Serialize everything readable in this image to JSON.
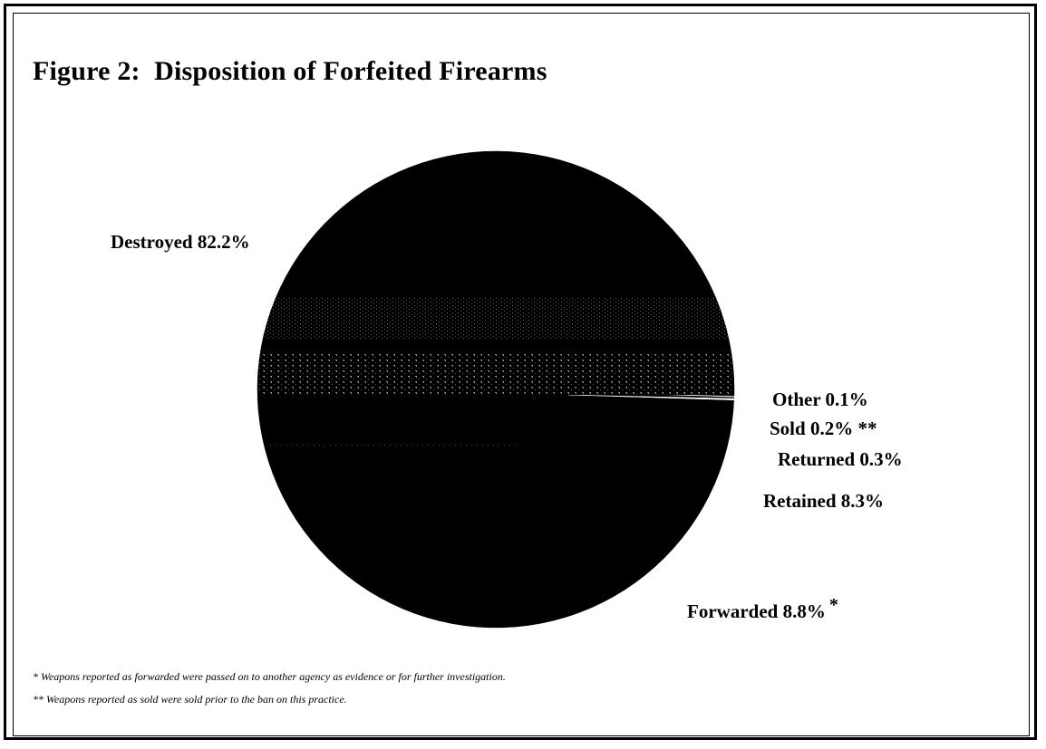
{
  "figure": {
    "title": "Figure 2:  Disposition of Forfeited Firearms"
  },
  "chart_data": {
    "type": "pie",
    "title": "Figure 2:  Disposition of Forfeited Firearms",
    "slices": [
      {
        "label": "Destroyed",
        "value": 82.2,
        "display": "Destroyed 82.2%",
        "marker": "",
        "color": "#000000"
      },
      {
        "label": "Forwarded",
        "value": 8.8,
        "display": "Forwarded 8.8%",
        "marker": "*",
        "color": "#000000"
      },
      {
        "label": "Retained",
        "value": 8.3,
        "display": "Retained  8.3%",
        "marker": "",
        "color": "#000000"
      },
      {
        "label": "Returned",
        "value": 0.3,
        "display": "Returned  0.3%",
        "marker": "",
        "color": "#000000"
      },
      {
        "label": "Sold",
        "value": 0.2,
        "display": "Sold  0.2%  **",
        "marker": "**",
        "color": "#000000"
      },
      {
        "label": "Other",
        "value": 0.1,
        "display": "Other  0.1%",
        "marker": "",
        "color": "#ffffff"
      }
    ],
    "legend": "none"
  },
  "footnotes": [
    "* Weapons reported as forwarded were passed on to another agency as evidence or for further investigation.",
    "** Weapons reported as sold were sold prior to the ban on this practice."
  ]
}
